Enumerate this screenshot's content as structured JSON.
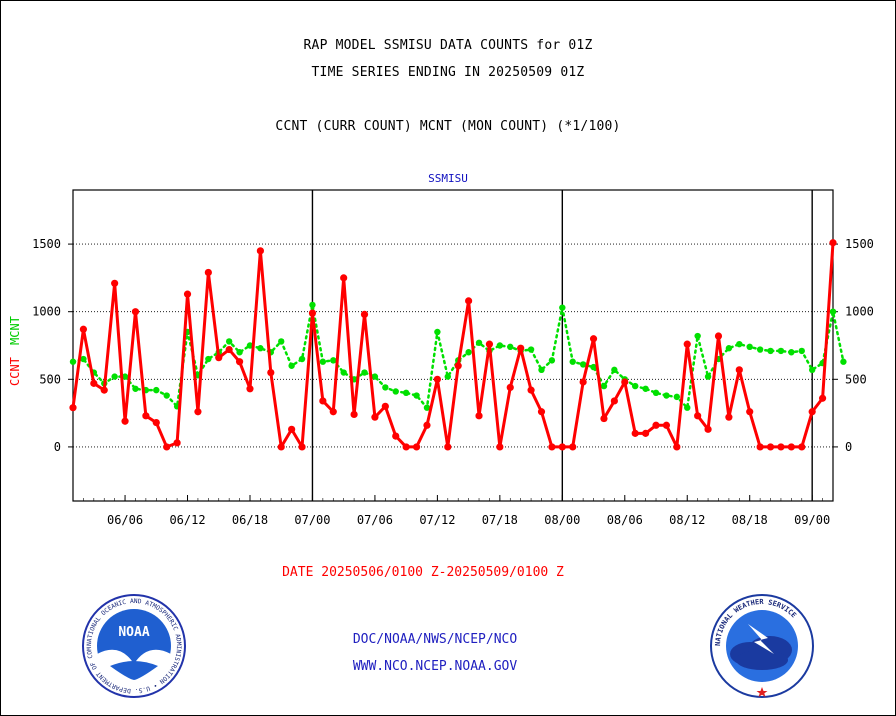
{
  "header": {
    "title_line1": "RAP MODEL SSMISU DATA COUNTS for 01Z",
    "title_line2": "TIME SERIES ENDING IN 20250509 01Z",
    "legend_line": "CCNT (CURR COUNT) MCNT (MON COUNT) (*1/100)"
  },
  "footer": {
    "date_range": "DATE 20250506/0100 Z-20250509/0100 Z",
    "link1": "DOC/NOAA/NWS/NCEP/NCO",
    "link2": "WWW.NCO.NCEP.NOAA.GOV"
  },
  "logos": {
    "noaa_text": "NOAA",
    "noaa_ring": "NATIONAL OCEANIC AND ATMOSPHERIC ADMINISTRATION • U.S. DEPARTMENT OF COMMERCE •",
    "nws_ring": "NATIONAL WEATHER SERVICE"
  },
  "chart_data": {
    "type": "line",
    "plot_label": "SSMISU",
    "ylabel_left": "CCNT",
    "ylabel_right": "MCNT",
    "ylim": [
      -400,
      1900
    ],
    "yticks": [
      0,
      500,
      1000,
      1500
    ],
    "grid": true,
    "x_tick_labels": [
      "06/06",
      "06/12",
      "06/18",
      "07/00",
      "07/06",
      "07/12",
      "07/18",
      "08/00",
      "08/06",
      "08/12",
      "08/18",
      "09/00"
    ],
    "x_tick_index": [
      5,
      11,
      17,
      23,
      29,
      35,
      41,
      47,
      53,
      59,
      65,
      71
    ],
    "period_boundaries": [
      23,
      47,
      71
    ],
    "colors": {
      "ccnt": "#ff0000",
      "mcnt": "#00e000",
      "grid": "#000000",
      "plot_label": "#1010c0"
    },
    "series": [
      {
        "name": "CCNT",
        "values": [
          290,
          870,
          470,
          420,
          1210,
          190,
          1000,
          230,
          180,
          0,
          30,
          1130,
          260,
          1290,
          660,
          720,
          630,
          430,
          1450,
          550,
          0,
          130,
          0,
          990,
          340,
          260,
          1250,
          240,
          980,
          220,
          300,
          80,
          0,
          0,
          160,
          500,
          0,
          600,
          1080,
          230,
          760,
          0,
          440,
          730,
          420,
          260,
          0,
          0,
          0,
          480,
          800,
          210,
          340,
          480,
          100,
          100,
          160,
          160,
          0,
          760,
          230,
          130,
          820,
          220,
          570,
          260,
          0,
          0,
          0,
          0,
          0,
          260,
          360,
          1510
        ]
      },
      {
        "name": "MCNT",
        "values": [
          630,
          650,
          550,
          470,
          520,
          520,
          430,
          420,
          420,
          380,
          300,
          850,
          530,
          650,
          700,
          780,
          700,
          750,
          730,
          700,
          780,
          600,
          650,
          1050,
          630,
          640,
          550,
          500,
          550,
          520,
          440,
          410,
          400,
          380,
          290,
          850,
          520,
          640,
          700,
          770,
          710,
          750,
          740,
          710,
          720,
          570,
          640,
          1030,
          630,
          610,
          590,
          450,
          570,
          500,
          450,
          430,
          400,
          380,
          370,
          290,
          820,
          520,
          650,
          730,
          760,
          740,
          720,
          710,
          710,
          700,
          710,
          570,
          620,
          1000,
          630
        ]
      }
    ]
  }
}
